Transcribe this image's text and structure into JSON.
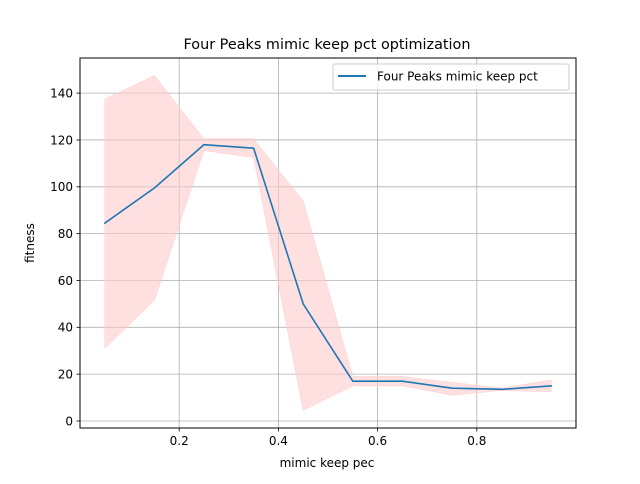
{
  "chart_data": {
    "type": "line",
    "title": "Four Peaks mimic keep pct optimization",
    "xlabel": "mimic keep pec",
    "ylabel": "fitness",
    "xlim": [
      0.0,
      1.0
    ],
    "ylim": [
      -3,
      155
    ],
    "x_ticks": [
      0.2,
      0.4,
      0.6,
      0.8
    ],
    "x_tick_labels": [
      "0.2",
      "0.4",
      "0.6",
      "0.8"
    ],
    "y_ticks": [
      0,
      20,
      40,
      60,
      80,
      100,
      120,
      140
    ],
    "y_tick_labels": [
      "0",
      "20",
      "40",
      "60",
      "80",
      "100",
      "120",
      "140"
    ],
    "grid": true,
    "legend_position": "upper-right",
    "series": [
      {
        "name": "Four Peaks mimic keep pct",
        "color": "#1f77b4",
        "x": [
          0.05,
          0.15,
          0.25,
          0.35,
          0.45,
          0.55,
          0.65,
          0.75,
          0.85,
          0.95
        ],
        "y": [
          84.5,
          99.5,
          118.0,
          116.5,
          50.0,
          17.0,
          17.0,
          14.0,
          13.5,
          15.0
        ],
        "band": {
          "color": "#ffcccc",
          "upper": [
            137.5,
            147.5,
            120.5,
            120.5,
            94.0,
            19.0,
            19.0,
            16.5,
            14.0,
            17.5
          ],
          "lower": [
            31.0,
            51.5,
            115.5,
            112.5,
            4.5,
            15.0,
            15.0,
            11.0,
            13.0,
            12.5
          ]
        }
      }
    ]
  }
}
